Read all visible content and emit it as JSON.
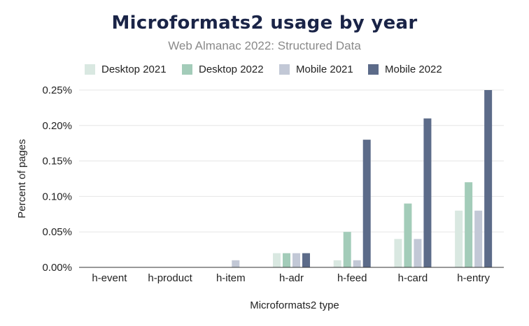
{
  "chart_data": {
    "type": "bar",
    "title": "Microformats2 usage by year",
    "subtitle": "Web Almanac 2022: Structured Data",
    "xlabel": "Microformats2 type",
    "ylabel": "Percent of pages",
    "categories": [
      "h-event",
      "h-product",
      "h-item",
      "h-adr",
      "h-feed",
      "h-card",
      "h-entry"
    ],
    "ylim": [
      0,
      0.25
    ],
    "yticks": [
      "0.00%",
      "0.05%",
      "0.10%",
      "0.15%",
      "0.20%",
      "0.25%"
    ],
    "ytick_values": [
      0,
      0.05,
      0.1,
      0.15,
      0.2,
      0.25
    ],
    "grid": true,
    "legend_position": "top",
    "series": [
      {
        "name": "Desktop 2021",
        "color": "#d9e8e1",
        "values": [
          0,
          0,
          0,
          0.02,
          0.01,
          0.04,
          0.08
        ]
      },
      {
        "name": "Desktop 2022",
        "color": "#a3ccb9",
        "values": [
          0,
          0,
          0,
          0.02,
          0.05,
          0.09,
          0.12
        ]
      },
      {
        "name": "Mobile 2021",
        "color": "#c2c8d6",
        "values": [
          0,
          0,
          0.01,
          0.02,
          0.01,
          0.04,
          0.08
        ]
      },
      {
        "name": "Mobile 2022",
        "color": "#5c6b89",
        "values": [
          0,
          0,
          0,
          0.02,
          0.18,
          0.21,
          0.25
        ]
      }
    ]
  }
}
